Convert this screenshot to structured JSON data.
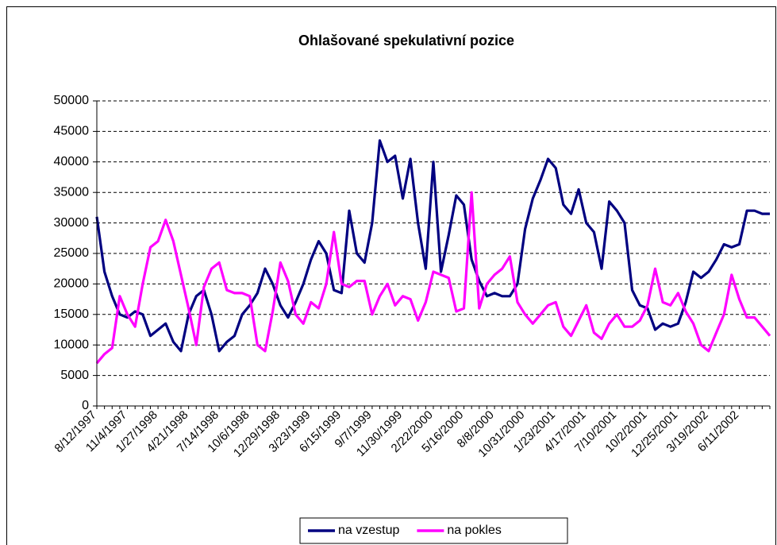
{
  "chart_data": {
    "type": "line",
    "title": "Ohlašované spekulativní pozice",
    "categories": [
      "8/12/1997",
      null,
      null,
      null,
      "11/4/1997",
      null,
      null,
      null,
      "1/27/1998",
      null,
      null,
      null,
      "4/21/1998",
      null,
      null,
      null,
      "7/14/1998",
      null,
      null,
      null,
      "10/6/1998",
      null,
      null,
      null,
      "12/29/1998",
      null,
      null,
      null,
      "3/23/1999",
      null,
      null,
      null,
      "6/15/1999",
      null,
      null,
      null,
      "9/7/1999",
      null,
      null,
      null,
      "11/30/1999",
      null,
      null,
      null,
      "2/22/2000",
      null,
      null,
      null,
      "5/16/2000",
      null,
      null,
      null,
      "8/8/2000",
      null,
      null,
      null,
      "10/31/2000",
      null,
      null,
      null,
      "1/23/2001",
      null,
      null,
      null,
      "4/17/2001",
      null,
      null,
      null,
      "7/10/2001",
      null,
      null,
      null,
      "10/2/2001",
      null,
      null,
      null,
      "12/25/2001",
      null,
      null,
      null,
      "3/19/2002",
      null,
      null,
      null,
      "6/11/2002",
      null,
      null,
      null,
      null
    ],
    "series": [
      {
        "name": "na vzestup",
        "color": "#000080",
        "values": [
          31000,
          22000,
          18000,
          15000,
          14500,
          15500,
          15000,
          11500,
          12500,
          13500,
          10500,
          9000,
          15000,
          18000,
          19000,
          15000,
          9000,
          10500,
          11500,
          15000,
          16500,
          18500,
          22500,
          20000,
          16500,
          14500,
          17000,
          20000,
          24000,
          27000,
          25000,
          19000,
          18500,
          32000,
          25000,
          23500,
          30000,
          43500,
          40000,
          41000,
          34000,
          40500,
          30000,
          22500,
          40000,
          22000,
          28000,
          34500,
          33000,
          24000,
          20500,
          18000,
          18500,
          18000,
          18000,
          20000,
          29000,
          34000,
          37000,
          40500,
          39000,
          33000,
          31500,
          35500,
          30000,
          28500,
          22500,
          33500,
          32000,
          30000,
          19000,
          16500,
          16000,
          12500,
          13500,
          13000,
          13500,
          17000,
          22000,
          21000,
          22000,
          24000,
          26500,
          26000,
          26500,
          32000,
          32000,
          31500,
          31500
        ]
      },
      {
        "name": "na pokles",
        "color": "#ff00ff",
        "values": [
          7000,
          8500,
          9500,
          18000,
          15000,
          13000,
          20000,
          26000,
          27000,
          30500,
          27000,
          21500,
          16000,
          10000,
          19500,
          22500,
          23500,
          19000,
          18500,
          18500,
          18000,
          10000,
          9000,
          15500,
          23500,
          20500,
          15000,
          13500,
          17000,
          16000,
          20000,
          28500,
          20000,
          19500,
          20500,
          20500,
          15000,
          18000,
          20000,
          16500,
          18000,
          17500,
          14000,
          17000,
          22000,
          21500,
          21000,
          15500,
          16000,
          35000,
          16000,
          20000,
          21500,
          22500,
          24500,
          17000,
          15000,
          13500,
          15000,
          16500,
          17000,
          13000,
          11500,
          14000,
          16500,
          12000,
          11000,
          13500,
          15000,
          13000,
          13000,
          14000,
          16500,
          22500,
          17000,
          16500,
          18500,
          15500,
          13500,
          10000,
          9000,
          12000,
          15000,
          21500,
          17500,
          14500,
          14500,
          13000,
          11500
        ]
      }
    ],
    "ylim": [
      0,
      50000
    ],
    "yticks": [
      0,
      5000,
      10000,
      15000,
      20000,
      25000,
      30000,
      35000,
      40000,
      45000,
      50000
    ],
    "grid": true,
    "legend": "bottom"
  }
}
